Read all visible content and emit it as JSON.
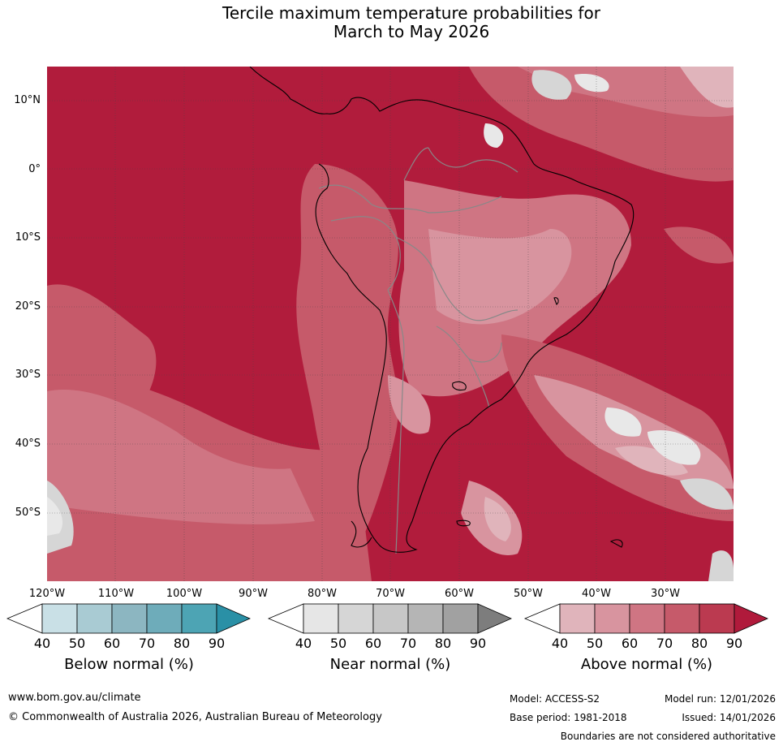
{
  "title": {
    "line1": "Tercile maximum temperature probabilities for",
    "line2": "March to May 2026"
  },
  "map": {
    "lat_labels": [
      "10°N",
      "0°",
      "10°S",
      "20°S",
      "30°S",
      "40°S",
      "50°S"
    ],
    "lon_labels": [
      "120°W",
      "110°W",
      "100°W",
      "90°W",
      "80°W",
      "70°W",
      "60°W",
      "50°W",
      "40°W",
      "30°W"
    ],
    "colors": {
      "a50": "#e0b4bb",
      "a60": "#d8949f",
      "a70": "#cf7583",
      "a80": "#c65a6a",
      "a90": "#b11c3c",
      "n50": "#e8e8e8",
      "n60": "#d6d6d6",
      "coast": "#000000",
      "border": "#888888"
    }
  },
  "legends": [
    {
      "title": "Below normal (%)",
      "ticks": [
        "40",
        "50",
        "60",
        "70",
        "80",
        "90"
      ],
      "colors": [
        "#ffffff",
        "#c9e0e6",
        "#a9cbd3",
        "#8cb6c1",
        "#6eacba",
        "#4da4b4",
        "#2a90a6"
      ]
    },
    {
      "title": "Near normal (%)",
      "ticks": [
        "40",
        "50",
        "60",
        "70",
        "80",
        "90"
      ],
      "colors": [
        "#ffffff",
        "#e6e6e6",
        "#d6d6d6",
        "#c7c7c7",
        "#b5b5b5",
        "#a1a1a1",
        "#7d7d7d"
      ]
    },
    {
      "title": "Above normal (%)",
      "ticks": [
        "40",
        "50",
        "60",
        "70",
        "80",
        "90"
      ],
      "colors": [
        "#ffffff",
        "#e0b4bb",
        "#d8949f",
        "#cf7583",
        "#c65a6a",
        "#bb3a50",
        "#b01a3b"
      ]
    }
  ],
  "footer": {
    "website": "www.bom.gov.au/climate",
    "copyright": "© Commonwealth of Australia 2026, Australian Bureau of Meteorology",
    "model": "Model: ACCESS-S2",
    "base_period": "Base period: 1981-2018",
    "model_run": "Model run: 12/01/2026",
    "issued": "Issued: 14/01/2026",
    "disclaimer": "Boundaries are not considered authoritative"
  }
}
